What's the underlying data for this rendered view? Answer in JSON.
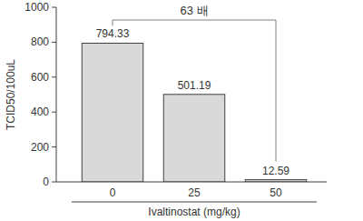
{
  "chart_data": {
    "type": "bar",
    "categories": [
      "0",
      "25",
      "50"
    ],
    "values": [
      794.33,
      501.19,
      12.59
    ],
    "color": "#d9d9d9",
    "ylim": [
      0,
      1000
    ],
    "yticks": [
      0,
      200,
      400,
      600,
      800,
      1000
    ],
    "grid": false,
    "data_labels": true,
    "y_label": "TCID50/100uL",
    "x_label": "Ivaltinostat (mg/kg)",
    "annotation": "63 배"
  }
}
